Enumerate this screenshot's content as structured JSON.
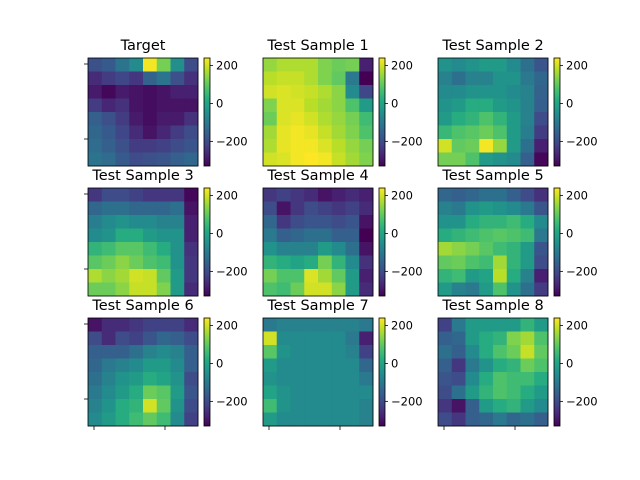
{
  "chart_data": {
    "type": "heatmap",
    "colormap": "viridis",
    "grid": false,
    "colorbar": {
      "vmin": -330,
      "vmax": 240,
      "ticks": [
        200,
        0,
        -200
      ],
      "tick_labels": [
        "200",
        "0",
        "−200"
      ]
    },
    "panels": [
      {
        "title": "Target",
        "values": [
          [
            -190,
            -170,
            -110,
            -60,
            230,
            120,
            -50,
            -200
          ],
          [
            -260,
            -230,
            -210,
            -240,
            -150,
            -110,
            -190,
            -250
          ],
          [
            -290,
            -320,
            -290,
            -300,
            -310,
            -300,
            -280,
            -280
          ],
          [
            -230,
            -270,
            -250,
            -300,
            -310,
            -300,
            -300,
            -300
          ],
          [
            -160,
            -190,
            -230,
            -290,
            -310,
            -290,
            -290,
            -250
          ],
          [
            -140,
            -170,
            -210,
            -260,
            -300,
            -270,
            -230,
            -200
          ],
          [
            -130,
            -160,
            -190,
            -230,
            -230,
            -220,
            -200,
            -180
          ],
          [
            -110,
            -130,
            -170,
            -200,
            -190,
            -180,
            -160,
            -140
          ]
        ]
      },
      {
        "title": "Test Sample 1",
        "values": [
          [
            150,
            170,
            170,
            170,
            130,
            110,
            120,
            -280
          ],
          [
            180,
            190,
            190,
            170,
            130,
            100,
            -100,
            -340
          ],
          [
            200,
            210,
            200,
            190,
            170,
            140,
            -60,
            -210
          ],
          [
            130,
            210,
            210,
            180,
            160,
            140,
            80,
            -20
          ],
          [
            110,
            210,
            220,
            200,
            170,
            150,
            120,
            60
          ],
          [
            160,
            220,
            230,
            220,
            190,
            160,
            130,
            80
          ],
          [
            170,
            220,
            230,
            230,
            210,
            180,
            150,
            120
          ],
          [
            200,
            210,
            230,
            240,
            230,
            190,
            160,
            130
          ]
        ]
      },
      {
        "title": "Test Sample 2",
        "values": [
          [
            -40,
            -60,
            -40,
            -20,
            -20,
            -60,
            -120,
            -180
          ],
          [
            -80,
            -120,
            -80,
            -80,
            -40,
            -40,
            -100,
            -140
          ],
          [
            -60,
            -60,
            -40,
            -40,
            -40,
            -60,
            -80,
            -150
          ],
          [
            -40,
            -20,
            20,
            20,
            -20,
            -40,
            -80,
            -160
          ],
          [
            -20,
            20,
            40,
            80,
            40,
            -20,
            -80,
            -200
          ],
          [
            50,
            80,
            90,
            110,
            80,
            -20,
            -90,
            -230
          ],
          [
            200,
            100,
            110,
            230,
            150,
            -20,
            -120,
            -280
          ],
          [
            120,
            120,
            80,
            -20,
            -40,
            -60,
            -160,
            -320
          ]
        ]
      },
      {
        "title": "Test Sample 3",
        "values": [
          [
            -240,
            -200,
            -200,
            -220,
            -240,
            -240,
            -240,
            -320
          ],
          [
            -140,
            -120,
            -120,
            -140,
            -140,
            -140,
            -120,
            -300
          ],
          [
            -90,
            -60,
            -40,
            -60,
            -60,
            -80,
            -80,
            -280
          ],
          [
            -60,
            -40,
            20,
            20,
            -20,
            -40,
            -40,
            -280
          ],
          [
            40,
            60,
            90,
            90,
            60,
            20,
            -40,
            -250
          ],
          [
            90,
            110,
            140,
            110,
            80,
            60,
            -40,
            -240
          ],
          [
            170,
            140,
            160,
            200,
            190,
            100,
            -20,
            -240
          ],
          [
            110,
            110,
            140,
            190,
            190,
            130,
            -20,
            -260
          ]
        ]
      },
      {
        "title": "Test Sample 4",
        "values": [
          [
            -240,
            -220,
            -240,
            -260,
            -300,
            -280,
            -260,
            -280
          ],
          [
            -200,
            -300,
            -240,
            -200,
            -220,
            -240,
            -220,
            -260
          ],
          [
            -140,
            -240,
            -200,
            -180,
            -180,
            -200,
            -180,
            -300
          ],
          [
            -100,
            -160,
            -140,
            -120,
            -120,
            -160,
            -160,
            -330
          ],
          [
            -40,
            -80,
            -80,
            -80,
            -20,
            -60,
            -120,
            -300
          ],
          [
            40,
            20,
            0,
            20,
            120,
            40,
            -60,
            -250
          ],
          [
            120,
            80,
            80,
            210,
            160,
            100,
            -20,
            -280
          ],
          [
            80,
            60,
            110,
            200,
            200,
            140,
            -20,
            -260
          ]
        ]
      },
      {
        "title": "Test Sample 5",
        "values": [
          [
            -140,
            -160,
            -140,
            -120,
            -120,
            -160,
            -200,
            -250
          ],
          [
            -80,
            -100,
            -40,
            -20,
            -40,
            -60,
            -100,
            -180
          ],
          [
            -40,
            -40,
            20,
            40,
            40,
            60,
            20,
            -60
          ],
          [
            20,
            40,
            60,
            80,
            90,
            80,
            60,
            -100
          ],
          [
            160,
            140,
            120,
            90,
            60,
            40,
            -20,
            -180
          ],
          [
            100,
            110,
            80,
            60,
            160,
            40,
            -20,
            -200
          ],
          [
            40,
            60,
            -20,
            0,
            180,
            20,
            -80,
            -280
          ],
          [
            -20,
            -80,
            -100,
            -20,
            80,
            -40,
            -120,
            -230
          ]
        ]
      },
      {
        "title": "Test Sample 6",
        "values": [
          [
            -300,
            -260,
            -260,
            -240,
            -220,
            -220,
            -220,
            -260
          ],
          [
            -200,
            -260,
            -200,
            -220,
            -180,
            -140,
            -160,
            -200
          ],
          [
            -160,
            -160,
            -160,
            -120,
            -80,
            -60,
            -80,
            -160
          ],
          [
            -140,
            -100,
            -80,
            -60,
            -20,
            -20,
            -60,
            -160
          ],
          [
            -120,
            -80,
            -40,
            -20,
            20,
            0,
            -40,
            -200
          ],
          [
            -100,
            -60,
            -20,
            20,
            110,
            90,
            -20,
            -180
          ],
          [
            -80,
            -40,
            20,
            40,
            200,
            100,
            -40,
            -200
          ],
          [
            -60,
            -20,
            20,
            60,
            100,
            60,
            -60,
            -220
          ]
        ]
      },
      {
        "title": "Test Sample 7",
        "values": [
          [
            -100,
            -80,
            -80,
            -80,
            -80,
            -80,
            -80,
            -100
          ],
          [
            200,
            -60,
            -60,
            -60,
            -60,
            -60,
            -100,
            -280
          ],
          [
            90,
            -40,
            -60,
            -60,
            -60,
            -60,
            -80,
            -220
          ],
          [
            -20,
            -60,
            -60,
            -60,
            -60,
            -60,
            -60,
            -140
          ],
          [
            -40,
            -60,
            -60,
            -60,
            -60,
            -60,
            -60,
            -100
          ],
          [
            0,
            -40,
            -60,
            -60,
            -60,
            -60,
            -60,
            -60
          ],
          [
            60,
            -40,
            -60,
            -60,
            -60,
            -60,
            -60,
            -80
          ],
          [
            -20,
            -60,
            -60,
            -60,
            -60,
            -60,
            -60,
            -80
          ]
        ]
      },
      {
        "title": "Test Sample 8",
        "values": [
          [
            -220,
            -100,
            -20,
            -20,
            -20,
            -20,
            40,
            -20
          ],
          [
            -160,
            -140,
            -20,
            20,
            40,
            130,
            160,
            80
          ],
          [
            -120,
            -160,
            -60,
            20,
            80,
            110,
            190,
            100
          ],
          [
            -160,
            -240,
            -100,
            -40,
            20,
            40,
            110,
            80
          ],
          [
            -180,
            -200,
            -60,
            20,
            80,
            60,
            60,
            20
          ],
          [
            -200,
            -120,
            -20,
            40,
            80,
            60,
            20,
            -20
          ],
          [
            -240,
            -300,
            -160,
            -20,
            20,
            40,
            -20,
            -60
          ],
          [
            -200,
            -240,
            -160,
            -140,
            -100,
            -140,
            -120,
            -160
          ]
        ]
      }
    ]
  }
}
